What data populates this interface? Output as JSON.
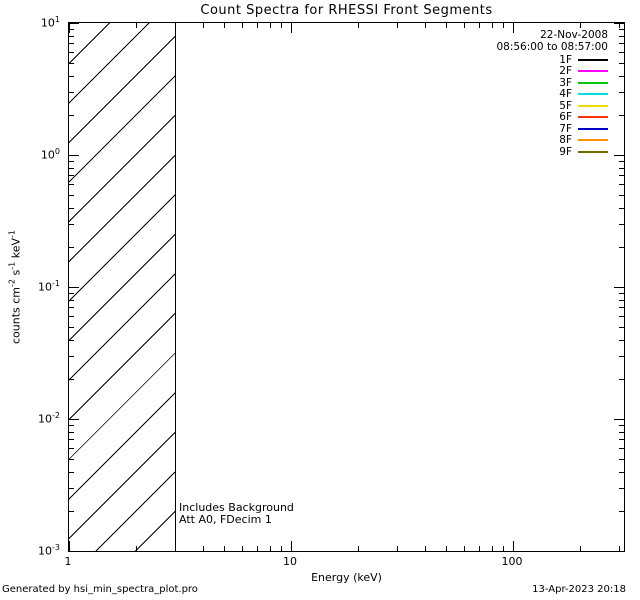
{
  "chart_data": {
    "type": "line",
    "title": "Count Spectra for RHESSI Front Segments",
    "xlabel": "Energy (keV)",
    "ylabel": "counts cm-2 s-1 keV-1",
    "ylabel_parts": [
      {
        "text": "counts cm"
      },
      {
        "sup": "-2"
      },
      {
        "text": " s"
      },
      {
        "sup": "-1"
      },
      {
        "text": " keV"
      },
      {
        "sup": "-1"
      }
    ],
    "xscale": "log",
    "yscale": "log",
    "xlim": [
      1,
      316
    ],
    "ylim": [
      0.001,
      10
    ],
    "grid": false,
    "xticks": [
      {
        "label": "1",
        "value": 1
      },
      {
        "label": "10",
        "value": 10
      },
      {
        "label": "100",
        "value": 100
      }
    ],
    "yticks": [
      {
        "base": "10",
        "exp": "-3",
        "value": 0.001
      },
      {
        "base": "10",
        "exp": "-2",
        "value": 0.01
      },
      {
        "base": "10",
        "exp": "-1",
        "value": 0.1
      },
      {
        "base": "10",
        "exp": "0",
        "value": 1
      },
      {
        "base": "10",
        "exp": "1",
        "value": 10
      }
    ],
    "series": [],
    "excluded_region": {
      "from_keV": 1,
      "to_keV": 3,
      "style": "diagonal-hatch"
    },
    "annotations": [
      "Includes Background",
      "Att A0, FDecim 1"
    ],
    "legend": {
      "position": "top-right",
      "date": "22-Nov-2008",
      "time_range": "08:56:00 to 08:57:00",
      "entries": [
        {
          "label": "1F",
          "color": "#000000"
        },
        {
          "label": "2F",
          "color": "#ff00ff"
        },
        {
          "label": "3F",
          "color": "#00c800"
        },
        {
          "label": "4F",
          "color": "#00e0e0"
        },
        {
          "label": "5F",
          "color": "#f0dc00"
        },
        {
          "label": "6F",
          "color": "#ff3000"
        },
        {
          "label": "7F",
          "color": "#0000c8"
        },
        {
          "label": "8F",
          "color": "#ff9000"
        },
        {
          "label": "9F",
          "color": "#6b6b00"
        }
      ]
    }
  },
  "footer": {
    "generated_by": "Generated by hsi_min_spectra_plot.pro",
    "timestamp": "13-Apr-2023 20:18"
  }
}
